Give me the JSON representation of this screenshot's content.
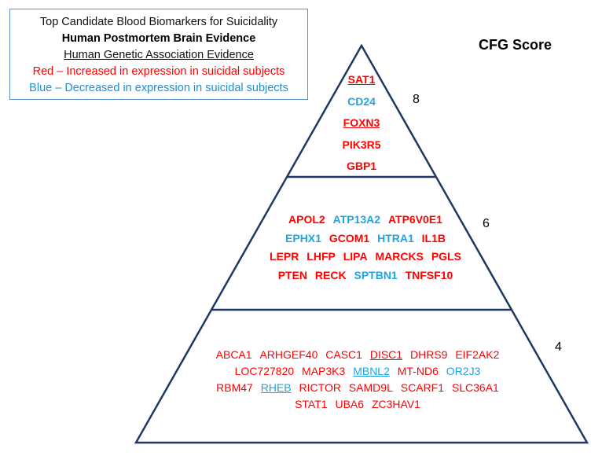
{
  "legend": {
    "title": "Top Candidate Blood Biomarkers for Suicidality",
    "brain": "Human Postmortem  Brain  Evidence",
    "genetic": "Human Genetic  Association Evidence",
    "red": "Red – Increased  in expression  in suicidal subjects",
    "blue": "Blue – Decreased  in expression  in suicidal subjects"
  },
  "score_header": "CFG Score",
  "colors": {
    "increased": "#ff0000",
    "decreased": "#1ea4e0",
    "outline": "#1f3864"
  },
  "tiers": [
    {
      "score": "8",
      "lines": [
        [
          {
            "name": "SAT1",
            "dir": "up",
            "ul": true
          }
        ],
        [
          {
            "name": "CD24",
            "dir": "down",
            "ul": false
          }
        ],
        [
          {
            "name": "FOXN3",
            "dir": "up",
            "ul": true
          }
        ],
        [
          {
            "name": "PIK3R5",
            "dir": "up",
            "ul": false
          }
        ],
        [
          {
            "name": "GBP1",
            "dir": "up",
            "ul": false
          }
        ]
      ]
    },
    {
      "score": "6",
      "lines": [
        [
          {
            "name": "APOL2",
            "dir": "up",
            "ul": false
          },
          {
            "name": "ATP13A2",
            "dir": "down",
            "ul": false
          },
          {
            "name": "ATP6V0E1",
            "dir": "up",
            "ul": false
          }
        ],
        [
          {
            "name": "EPHX1",
            "dir": "down",
            "ul": false
          },
          {
            "name": "GCOM1",
            "dir": "up",
            "ul": false
          },
          {
            "name": "HTRA1",
            "dir": "down",
            "ul": false
          },
          {
            "name": "IL1B",
            "dir": "up",
            "ul": false
          }
        ],
        [
          {
            "name": "LEPR",
            "dir": "up",
            "ul": false
          },
          {
            "name": "LHFP",
            "dir": "up",
            "ul": false
          },
          {
            "name": "LIPA",
            "dir": "up",
            "ul": false
          },
          {
            "name": "MARCKS",
            "dir": "up",
            "ul": false
          },
          {
            "name": "PGLS",
            "dir": "up",
            "ul": false
          }
        ],
        [
          {
            "name": "PTEN",
            "dir": "up",
            "ul": false
          },
          {
            "name": "RECK",
            "dir": "up",
            "ul": false
          },
          {
            "name": "SPTBN1",
            "dir": "down",
            "ul": false
          },
          {
            "name": "TNFSF10",
            "dir": "up",
            "ul": false
          }
        ]
      ]
    },
    {
      "score": "4",
      "lines": [
        [
          {
            "name": "ABCA1",
            "dir": "up",
            "ul": false
          },
          {
            "name": "ARHGEF40",
            "dir": "up",
            "ul": false
          },
          {
            "name": "CASC1",
            "dir": "up",
            "ul": false
          },
          {
            "name": "DISC1",
            "dir": "up",
            "ul": true
          },
          {
            "name": "DHRS9",
            "dir": "up",
            "ul": false
          },
          {
            "name": "EIF2AK2",
            "dir": "up",
            "ul": false
          }
        ],
        [
          {
            "name": "LOC727820",
            "dir": "up",
            "ul": false
          },
          {
            "name": "MAP3K3",
            "dir": "up",
            "ul": false
          },
          {
            "name": "MBNL2",
            "dir": "down",
            "ul": true
          },
          {
            "name": "MT-ND6",
            "dir": "up",
            "ul": false
          },
          {
            "name": "OR2J3",
            "dir": "down",
            "ul": false
          }
        ],
        [
          {
            "name": "RBM47",
            "dir": "up",
            "ul": false
          },
          {
            "name": "RHEB",
            "dir": "down",
            "ul": true
          },
          {
            "name": "RICTOR",
            "dir": "up",
            "ul": false
          },
          {
            "name": "SAMD9L",
            "dir": "up",
            "ul": false
          },
          {
            "name": "SCARF1",
            "dir": "up",
            "ul": false
          },
          {
            "name": "SLC36A1",
            "dir": "up",
            "ul": false
          }
        ],
        [
          {
            "name": "STAT1",
            "dir": "up",
            "ul": false
          },
          {
            "name": "UBA6",
            "dir": "up",
            "ul": false
          },
          {
            "name": "ZC3HAV1",
            "dir": "up",
            "ul": false
          }
        ]
      ]
    }
  ]
}
